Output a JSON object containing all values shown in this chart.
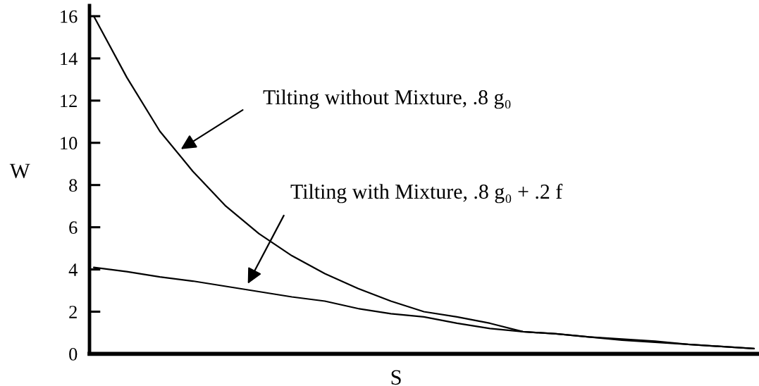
{
  "chart_data": {
    "type": "line",
    "xlabel": "S",
    "ylabel": "W",
    "categories": [
      null,
      null,
      null,
      null,
      null,
      null,
      null,
      null,
      null,
      null,
      null,
      null,
      null,
      null,
      null,
      null,
      null,
      null,
      null,
      null,
      null
    ],
    "series": [
      {
        "color": "#000000",
        "values": [
          16.0,
          13.1,
          10.55,
          8.65,
          7.0,
          5.7,
          4.65,
          3.8,
          3.1,
          2.5,
          2.0,
          1.75,
          1.45,
          1.05,
          0.95,
          0.8,
          0.7,
          0.6,
          0.45,
          0.35,
          0.25
        ]
      },
      {
        "color": "#000000",
        "values": [
          4.1,
          3.9,
          3.65,
          3.45,
          3.2,
          2.95,
          2.7,
          2.5,
          2.15,
          1.9,
          1.75,
          1.45,
          1.2,
          1.05,
          0.95,
          0.8,
          0.65,
          0.55,
          0.45,
          0.35,
          0.25
        ]
      }
    ],
    "ylim": [
      0,
      16.5
    ],
    "yticks": [
      0,
      2,
      4,
      6,
      8,
      10,
      12,
      14,
      16
    ],
    "grid": false,
    "tick_labels": "y",
    "marker": "none",
    "line_style": "solid",
    "annotations": [
      "Tilting without Mixture, .8 g₀",
      "Tilting with Mixture, .8 g₀ + .2 f"
    ]
  }
}
